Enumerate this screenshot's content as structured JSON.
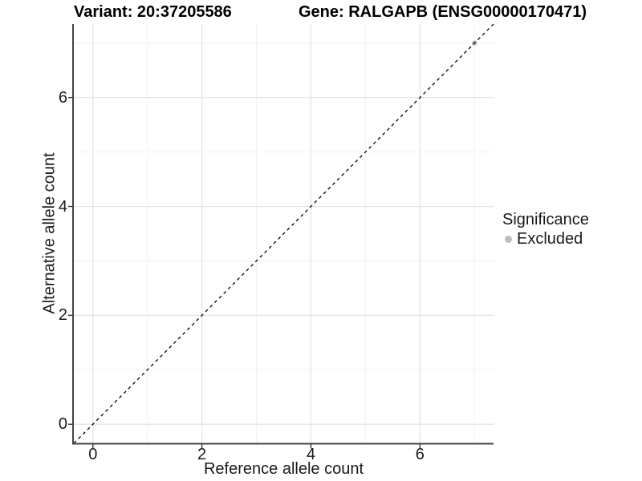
{
  "header": {
    "variant_title": "Variant: 20:37205586",
    "gene_title": "Gene: RALGAPB (ENSG00000170471)"
  },
  "chart_data": {
    "type": "scatter",
    "title": "Variant: 20:37205586 | Gene: RALGAPB (ENSG00000170471)",
    "xlabel": "Reference allele count",
    "ylabel": "Alternative allele count",
    "xlim": [
      -0.35,
      7.35
    ],
    "ylim": [
      -0.35,
      7.35
    ],
    "x_ticks": [
      0,
      2,
      4,
      6
    ],
    "y_ticks": [
      0,
      2,
      4,
      6
    ],
    "x_minor": [
      1,
      3,
      5,
      7
    ],
    "y_minor": [
      1,
      3,
      5,
      7
    ],
    "grid": "major+minor",
    "series": [
      {
        "name": "Excluded",
        "color": "#bdbdbd",
        "points": [
          {
            "x": 7,
            "y": 7
          }
        ]
      }
    ],
    "reference_line": {
      "type": "identity",
      "style": "dashed",
      "color": "#000000",
      "from": [
        -0.35,
        -0.35
      ],
      "to": [
        7.35,
        7.35
      ]
    },
    "legend": {
      "position": "right",
      "title": "Significance",
      "entries": [
        {
          "label": "Excluded",
          "color": "#bdbdbd"
        }
      ]
    },
    "colors": {
      "grid_major": "#e3e3e3",
      "grid_minor": "#f2f2f2",
      "axis_line": "#454545",
      "tick": "#333333"
    }
  }
}
